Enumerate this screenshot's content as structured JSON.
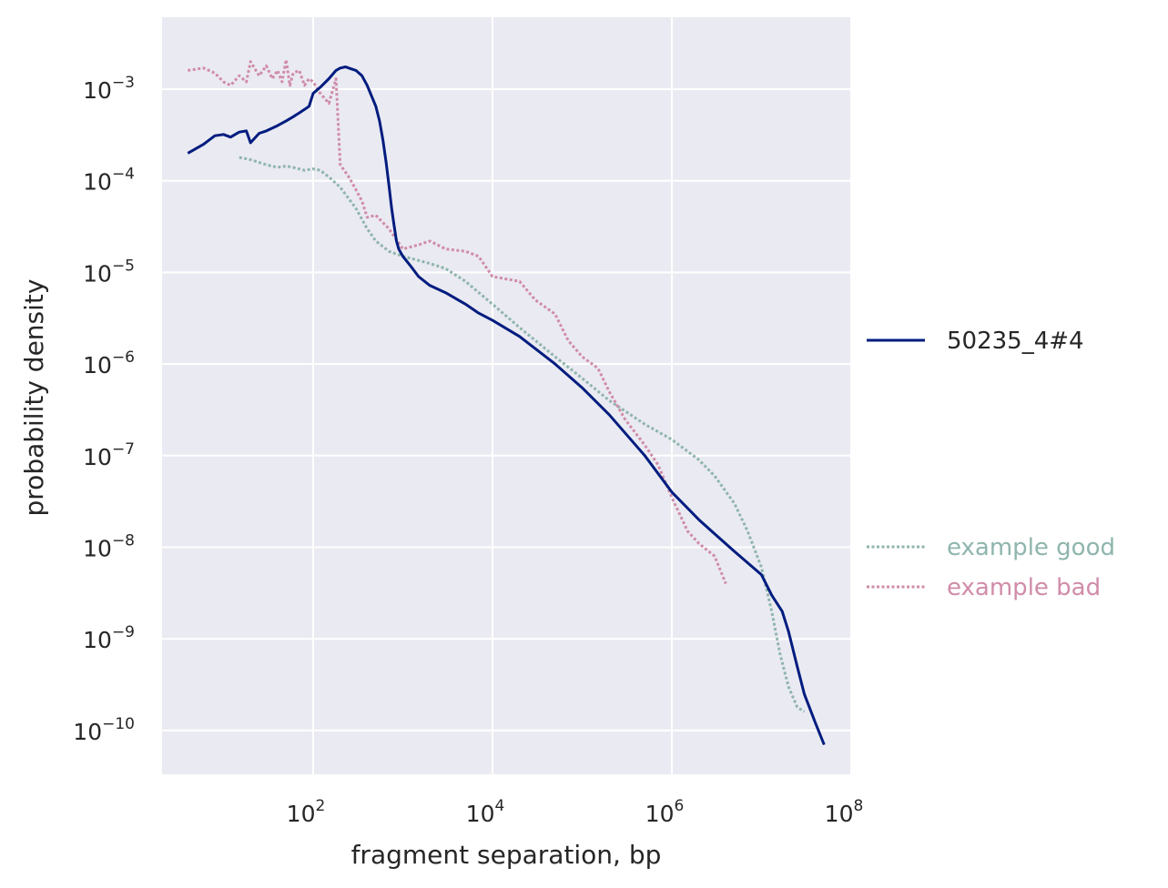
{
  "chart_data": {
    "type": "line",
    "xlabel": "fragment separation, bp",
    "ylabel": "probability density",
    "x_scale": "log",
    "y_scale": "log",
    "xlim": [
      1.7,
      110000000
    ],
    "ylim": [
      5e-11,
      0.006
    ],
    "x_ticks": [
      100,
      10000,
      1000000,
      100000000
    ],
    "x_tick_labels": [
      {
        "base": "10",
        "exp": "2"
      },
      {
        "base": "10",
        "exp": "4"
      },
      {
        "base": "10",
        "exp": "6"
      },
      {
        "base": "10",
        "exp": "8"
      }
    ],
    "y_ticks": [
      0.001,
      0.0001,
      1e-05,
      1e-06,
      1e-07,
      1e-08,
      1e-09,
      1e-10
    ],
    "y_tick_labels": [
      {
        "base": "10",
        "exp": "−3"
      },
      {
        "base": "10",
        "exp": "−4"
      },
      {
        "base": "10",
        "exp": "−5"
      },
      {
        "base": "10",
        "exp": "−6"
      },
      {
        "base": "10",
        "exp": "−7"
      },
      {
        "base": "10",
        "exp": "−8"
      },
      {
        "base": "10",
        "exp": "−9"
      },
      {
        "base": "10",
        "exp": "−10"
      }
    ],
    "grid": true,
    "background": "#eaeaf2",
    "legend_placement": "outside-right",
    "series": [
      {
        "name": "50235_4#4",
        "color": "#001c7f",
        "style": "solid",
        "x": [
          4,
          6,
          8,
          10,
          12,
          15,
          18,
          20,
          25,
          30,
          40,
          50,
          60,
          70,
          80,
          90,
          100,
          120,
          150,
          180,
          200,
          230,
          250,
          300,
          350,
          400,
          500,
          550,
          600,
          650,
          700,
          750,
          800,
          850,
          900,
          1000,
          1200,
          1500,
          2000,
          3000,
          5000,
          7000,
          10000,
          20000,
          50000,
          100000,
          200000,
          500000,
          1000000,
          2000000,
          3000000,
          5000000,
          10000000,
          13000000,
          17000000,
          20000000,
          25000000,
          30000000,
          40000000,
          50000000
        ],
        "y": [
          0.0002,
          0.00025,
          0.00031,
          0.00032,
          0.0003,
          0.00034,
          0.00035,
          0.00026,
          0.00033,
          0.00035,
          0.0004,
          0.00045,
          0.0005,
          0.00055,
          0.0006,
          0.00065,
          0.0009,
          0.00105,
          0.0013,
          0.0016,
          0.0017,
          0.00175,
          0.0017,
          0.0016,
          0.0014,
          0.0011,
          0.00065,
          0.00045,
          0.00028,
          0.00016,
          9e-05,
          5e-05,
          3.2e-05,
          2.2e-05,
          1.8e-05,
          1.5e-05,
          1.2e-05,
          9e-06,
          7.2e-06,
          6e-06,
          4.5e-06,
          3.6e-06,
          3e-06,
          2e-06,
          1e-06,
          5.5e-07,
          2.8e-07,
          1e-07,
          4e-08,
          2e-08,
          1.4e-08,
          9e-09,
          5e-09,
          3e-09,
          2e-09,
          1.2e-09,
          5e-10,
          2.5e-10,
          1.2e-10,
          7e-11
        ]
      },
      {
        "name": "example good",
        "color": "#8fb5ad",
        "style": "dotted",
        "x": [
          15,
          20,
          30,
          40,
          50,
          60,
          80,
          100,
          120,
          150,
          200,
          300,
          400,
          500,
          700,
          1000,
          2000,
          3000,
          5000,
          10000,
          20000,
          50000,
          100000,
          200000,
          500000,
          1000000,
          2000000,
          3000000,
          5000000,
          7000000,
          10000000,
          13000000,
          16000000,
          20000000,
          25000000,
          30000000
        ],
        "y": [
          0.00018,
          0.00017,
          0.00015,
          0.00014,
          0.000145,
          0.00014,
          0.00013,
          0.000135,
          0.00013,
          0.00011,
          8.5e-05,
          5e-05,
          3e-05,
          2.2e-05,
          1.7e-05,
          1.5e-05,
          1.25e-05,
          1.1e-05,
          8e-06,
          4.5e-06,
          2.5e-06,
          1.2e-06,
          7e-07,
          4e-07,
          2.2e-07,
          1.5e-07,
          9e-08,
          6e-08,
          3e-08,
          1.5e-08,
          6e-09,
          2e-09,
          7e-10,
          3e-10,
          1.8e-10,
          1.6e-10
        ]
      },
      {
        "name": "example bad",
        "color": "#d08ca8",
        "style": "dotted",
        "x": [
          4,
          6,
          8,
          10,
          12,
          15,
          18,
          20,
          25,
          30,
          35,
          40,
          45,
          50,
          55,
          60,
          70,
          80,
          90,
          100,
          120,
          150,
          180,
          200,
          250,
          300,
          350,
          400,
          500,
          700,
          1000,
          1500,
          2000,
          3000,
          5000,
          7000,
          10000,
          20000,
          30000,
          50000,
          70000,
          100000,
          150000,
          200000,
          300000,
          500000,
          700000,
          1000000,
          1500000,
          2000000,
          3000000,
          4000000
        ],
        "y": [
          0.0016,
          0.0017,
          0.0015,
          0.0012,
          0.0011,
          0.0014,
          0.0012,
          0.002,
          0.0014,
          0.0018,
          0.0013,
          0.0016,
          0.0012,
          0.0021,
          0.0011,
          0.0015,
          0.0016,
          0.0011,
          0.0013,
          0.0012,
          0.0009,
          0.0007,
          0.0013,
          0.00015,
          0.00011,
          8e-05,
          6e-05,
          4e-05,
          4.2e-05,
          3e-05,
          1.8e-05,
          2e-05,
          2.2e-05,
          1.8e-05,
          1.7e-05,
          1.5e-05,
          9e-06,
          8e-06,
          5e-06,
          3.5e-06,
          1.8e-06,
          1.2e-06,
          9e-07,
          5e-07,
          2.5e-07,
          1.3e-07,
          8e-08,
          3.5e-08,
          1.5e-08,
          1.1e-08,
          8e-09,
          4e-09
        ]
      }
    ]
  }
}
